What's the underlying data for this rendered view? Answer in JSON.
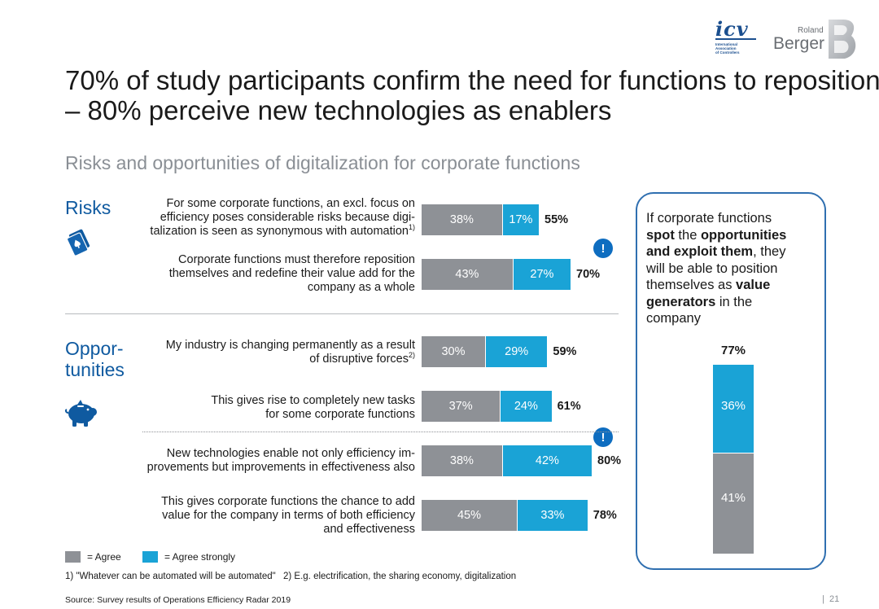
{
  "logos": {
    "icv_mark": "icv",
    "icv_sub": [
      "International",
      "Association",
      "of Controllers"
    ],
    "rb_small": "Roland",
    "rb_large": "Berger"
  },
  "title_lines": [
    "70% of study participants confirm the need for functions to reposition",
    "– 80% perceive new technologies as enablers"
  ],
  "subtitle": "Risks and opportunities of digitalization for corporate functions",
  "sections": {
    "risks": {
      "label": "Risks",
      "icon": "playing-cards-icon"
    },
    "opportunities": {
      "label_lines": [
        "Oppor-",
        "tunities"
      ],
      "icon": "piggy-bank-icon"
    }
  },
  "colors": {
    "agree": "#8e9196",
    "agree_strongly": "#1aa3d6",
    "accent_blue": "#0f5aa0",
    "panel_border": "#2f6fb0"
  },
  "row_labels": [
    {
      "lines": [
        "For some corporate functions, an excl. focus on",
        "efficiency poses considerable risks because digi-",
        "talization is seen as synonymous with automation"
      ],
      "sup": "1)"
    },
    {
      "lines": [
        "Corporate functions must therefore reposition",
        "themselves and redefine their value add for the",
        "company as a whole"
      ],
      "sup": ""
    },
    {
      "lines": [
        "My industry is changing permanently as a result",
        "of disruptive forces"
      ],
      "sup": "2)"
    },
    {
      "lines": [
        "This gives rise to completely new tasks",
        "for some corporate functions"
      ],
      "sup": ""
    },
    {
      "lines": [
        "New technologies enable not only efficiency im-",
        "provements but improvements in effectiveness also"
      ],
      "sup": ""
    },
    {
      "lines": [
        "This gives corporate functions the chance to add",
        "value for the company in terms of both efficiency",
        "and effectiveness"
      ],
      "sup": ""
    }
  ],
  "exclamation": "!",
  "panel": {
    "text_lines": [
      [
        {
          "t": "If corporate functions",
          "b": false
        }
      ],
      [
        {
          "t": "spot",
          "b": true
        },
        {
          "t": " the ",
          "b": false
        },
        {
          "t": "opportunities",
          "b": true
        }
      ],
      [
        {
          "t": "and exploit them",
          "b": true
        },
        {
          "t": ", they",
          "b": false
        }
      ],
      [
        {
          "t": "will be able to position",
          "b": false
        }
      ],
      [
        {
          "t": "themselves as ",
          "b": false
        },
        {
          "t": "value",
          "b": true
        }
      ],
      [
        {
          "t": "generators",
          "b": true
        },
        {
          "t": " in the",
          "b": false
        }
      ],
      [
        {
          "t": "company",
          "b": false
        }
      ]
    ]
  },
  "chart_data": [
    {
      "type": "bar",
      "orientation": "horizontal",
      "stacked": true,
      "categories": [
        "For some corporate functions, an excl. focus on efficiency poses considerable risks because digitalization is seen as synonymous with automation",
        "Corporate functions must therefore reposition themselves and redefine their value add for the company as a whole",
        "My industry is changing permanently as a result of disruptive forces",
        "This gives rise to completely new tasks for some corporate functions",
        "New technologies enable not only efficiency improvements but improvements in effectiveness also",
        "This gives corporate functions the chance to add value for the company in terms of both efficiency and effectiveness"
      ],
      "series": [
        {
          "name": "= Agree",
          "values": [
            38,
            43,
            30,
            37,
            38,
            45
          ]
        },
        {
          "name": "= Agree strongly",
          "values": [
            17,
            27,
            29,
            24,
            42,
            33
          ]
        }
      ],
      "totals": [
        55,
        70,
        59,
        61,
        80,
        78
      ],
      "highlighted_totals": [
        70,
        80
      ],
      "value_suffix": "%"
    },
    {
      "type": "bar",
      "orientation": "vertical",
      "stacked": true,
      "series": [
        {
          "name": "= Agree",
          "values": [
            41
          ]
        },
        {
          "name": "= Agree strongly",
          "values": [
            36
          ]
        }
      ],
      "totals": [
        77
      ],
      "value_suffix": "%"
    }
  ],
  "legend": [
    {
      "label": "= Agree",
      "color": "#8e9196"
    },
    {
      "label": "= Agree strongly",
      "color": "#1aa3d6"
    }
  ],
  "footnotes": [
    "1) \"Whatever can be automated will be automated\"",
    "2) E.g. electrification, the sharing economy, digitalization"
  ],
  "source": "Source: Survey results of Operations Efficiency Radar 2019",
  "page_number": "21"
}
